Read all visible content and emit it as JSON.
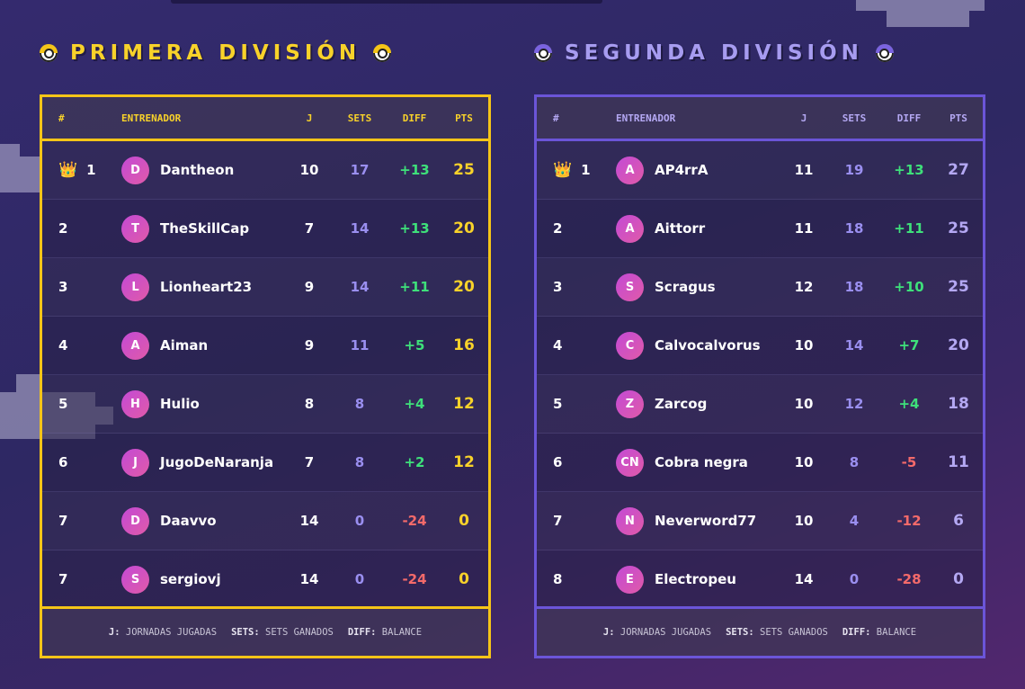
{
  "divisions": [
    {
      "title": "PRIMERA DIVISIÓN",
      "headers": {
        "pos": "#",
        "coach": "ENTRENADOR",
        "j": "J",
        "sets": "SETS",
        "diff": "DIFF",
        "pts": "PTS"
      },
      "rows": [
        {
          "pos": "1",
          "crown": true,
          "initial": "D",
          "name": "Dantheon",
          "j": "10",
          "sets": "17",
          "diff": "+13",
          "pts": "25"
        },
        {
          "pos": "2",
          "initial": "T",
          "name": "TheSkillCap",
          "j": "7",
          "sets": "14",
          "diff": "+13",
          "pts": "20"
        },
        {
          "pos": "3",
          "initial": "L",
          "name": "Lionheart23",
          "j": "9",
          "sets": "14",
          "diff": "+11",
          "pts": "20"
        },
        {
          "pos": "4",
          "initial": "A",
          "name": "Aiman",
          "j": "9",
          "sets": "11",
          "diff": "+5",
          "pts": "16"
        },
        {
          "pos": "5",
          "initial": "H",
          "name": "Hulio",
          "j": "8",
          "sets": "8",
          "diff": "+4",
          "pts": "12"
        },
        {
          "pos": "6",
          "initial": "J",
          "name": "JugoDeNaranja",
          "j": "7",
          "sets": "8",
          "diff": "+2",
          "pts": "12"
        },
        {
          "pos": "7",
          "initial": "D",
          "name": "Daavvo",
          "j": "14",
          "sets": "0",
          "diff": "-24",
          "pts": "0"
        },
        {
          "pos": "7",
          "initial": "S",
          "name": "sergiovj",
          "j": "14",
          "sets": "0",
          "diff": "-24",
          "pts": "0"
        }
      ],
      "legend": [
        {
          "key": "J:",
          "text": "JORNADAS JUGADAS"
        },
        {
          "key": "SETS:",
          "text": "SETS GANADOS"
        },
        {
          "key": "DIFF:",
          "text": "BALANCE"
        }
      ]
    },
    {
      "title": "SEGUNDA DIVISIÓN",
      "headers": {
        "pos": "#",
        "coach": "ENTRENADOR",
        "j": "J",
        "sets": "SETS",
        "diff": "DIFF",
        "pts": "PTS"
      },
      "rows": [
        {
          "pos": "1",
          "crown": true,
          "initial": "A",
          "name": "AP4rrA",
          "j": "11",
          "sets": "19",
          "diff": "+13",
          "pts": "27"
        },
        {
          "pos": "2",
          "initial": "A",
          "name": "Aittorr",
          "j": "11",
          "sets": "18",
          "diff": "+11",
          "pts": "25"
        },
        {
          "pos": "3",
          "initial": "S",
          "name": "Scragus",
          "j": "12",
          "sets": "18",
          "diff": "+10",
          "pts": "25"
        },
        {
          "pos": "4",
          "initial": "C",
          "name": "Calvocalvorus",
          "j": "10",
          "sets": "14",
          "diff": "+7",
          "pts": "20"
        },
        {
          "pos": "5",
          "initial": "Z",
          "name": "Zarcog",
          "j": "10",
          "sets": "12",
          "diff": "+4",
          "pts": "18"
        },
        {
          "pos": "6",
          "initial": "CN",
          "name": "Cobra negra",
          "j": "10",
          "sets": "8",
          "diff": "-5",
          "pts": "11"
        },
        {
          "pos": "7",
          "initial": "N",
          "name": "Neverword77",
          "j": "10",
          "sets": "4",
          "diff": "-12",
          "pts": "6"
        },
        {
          "pos": "8",
          "initial": "E",
          "name": "Electropeu",
          "j": "14",
          "sets": "0",
          "diff": "-28",
          "pts": "0"
        }
      ],
      "legend": [
        {
          "key": "J:",
          "text": "JORNADAS JUGADAS"
        },
        {
          "key": "SETS:",
          "text": "SETS GANADOS"
        },
        {
          "key": "DIFF:",
          "text": "BALANCE"
        }
      ]
    }
  ],
  "colors": {
    "primera_accent": "#f5c518",
    "segunda_accent": "#6b55d8",
    "positive": "#3ee07a",
    "negative": "#f46a6a"
  },
  "icons": {
    "title_icon": "pokeball-icon",
    "leader_icon": "crown-icon"
  }
}
